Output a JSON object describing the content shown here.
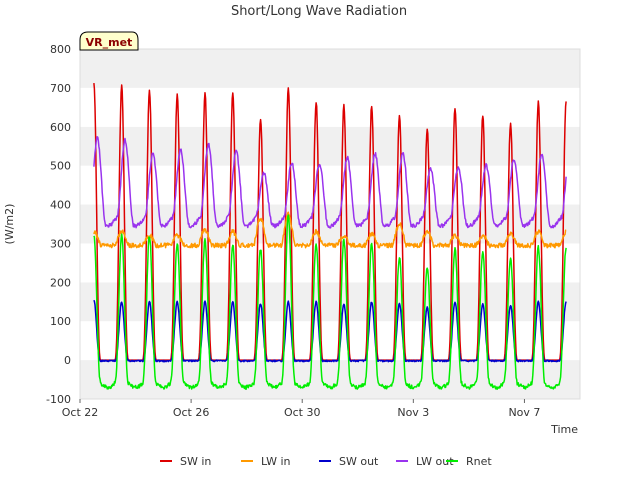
{
  "chart_data": {
    "type": "line",
    "title": "Short/Long Wave Radiation",
    "xlabel": "Time",
    "ylabel": "(W/m2)",
    "badge": "VR_met",
    "ylim": [
      -100,
      800
    ],
    "y_ticks": [
      -100,
      0,
      100,
      200,
      300,
      400,
      500,
      600,
      700,
      800
    ],
    "x_range": [
      "Oct 22",
      "Nov 9"
    ],
    "x_ticks": [
      "Oct 22",
      "Oct 26",
      "Oct 30",
      "Nov 3",
      "Nov 7"
    ],
    "x_tick_days": [
      0,
      4,
      8,
      12,
      16
    ],
    "x_range_days": [
      0,
      18
    ],
    "days_shown": 17,
    "grid": "horizontal bands",
    "legend_position": "bottom",
    "series": [
      {
        "name": "SW in",
        "color": "#dd0000",
        "daily_peaks": [
          715,
          705,
          695,
          685,
          685,
          685,
          620,
          700,
          665,
          655,
          655,
          630,
          595,
          650,
          630,
          610,
          665
        ],
        "night": 0
      },
      {
        "name": "LW in",
        "color": "#ff9900",
        "daily_peaks": [
          330,
          330,
          320,
          320,
          335,
          330,
          365,
          375,
          330,
          320,
          325,
          350,
          330,
          320,
          320,
          325,
          330
        ],
        "night": 295
      },
      {
        "name": "SW out",
        "color": "#0000cc",
        "daily_peaks": [
          155,
          150,
          150,
          150,
          150,
          150,
          145,
          150,
          150,
          145,
          150,
          145,
          135,
          150,
          145,
          140,
          150
        ],
        "night": -2
      },
      {
        "name": "LW out",
        "color": "#9933ee",
        "daily_peaks": [
          560,
          555,
          520,
          530,
          545,
          525,
          470,
          495,
          495,
          510,
          520,
          520,
          480,
          485,
          490,
          505,
          520
        ],
        "night": 360
      },
      {
        "name": "Rnet",
        "color": "#00ee00",
        "daily_peaks": [
          320,
          320,
          320,
          300,
          310,
          300,
          285,
          375,
          300,
          310,
          300,
          265,
          235,
          285,
          280,
          260,
          290
        ],
        "night": -60
      }
    ]
  }
}
